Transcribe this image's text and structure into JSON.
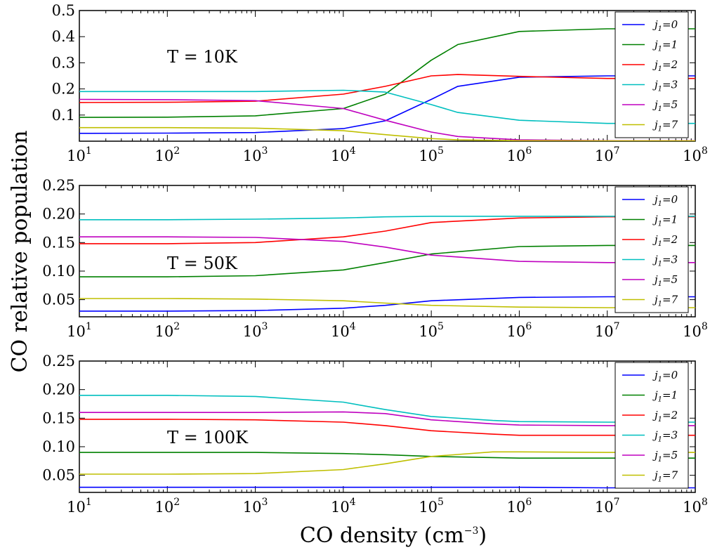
{
  "ylabel": "CO relative population",
  "xlabel": "CO density (cm",
  "xlabel_exp": "−3",
  "xlabel_close": ")",
  "chart_data": [
    {
      "type": "line",
      "annotation": "T = 10K",
      "x_scale": "log",
      "xlim": [
        10,
        100000000
      ],
      "ylim": [
        0,
        0.5
      ],
      "yticks": [
        "0.1",
        "0.2",
        "0.3",
        "0.4",
        "0.5"
      ],
      "ytick_values": [
        0.1,
        0.2,
        0.3,
        0.4,
        0.5
      ],
      "x": [
        10,
        100,
        1000,
        10000,
        30000,
        100000,
        200000,
        1000000,
        10000000,
        100000000
      ],
      "series": [
        {
          "name": "j1=0",
          "color": "#0000ff",
          "values": [
            0.03,
            0.031,
            0.033,
            0.048,
            0.078,
            0.16,
            0.21,
            0.245,
            0.25,
            0.25
          ]
        },
        {
          "name": "j1=1",
          "color": "#008000",
          "values": [
            0.091,
            0.092,
            0.097,
            0.125,
            0.18,
            0.31,
            0.37,
            0.42,
            0.43,
            0.43
          ]
        },
        {
          "name": "j1=2",
          "color": "#ff0000",
          "values": [
            0.148,
            0.149,
            0.153,
            0.18,
            0.21,
            0.25,
            0.255,
            0.248,
            0.24,
            0.24
          ]
        },
        {
          "name": "j1=3",
          "color": "#00bfbf",
          "values": [
            0.19,
            0.19,
            0.19,
            0.195,
            0.188,
            0.14,
            0.11,
            0.08,
            0.068,
            0.068
          ]
        },
        {
          "name": "j1=5",
          "color": "#bf00bf",
          "values": [
            0.16,
            0.159,
            0.155,
            0.125,
            0.08,
            0.035,
            0.018,
            0.005,
            0.002,
            0.002
          ]
        },
        {
          "name": "j1=7",
          "color": "#bfbf00",
          "values": [
            0.052,
            0.052,
            0.05,
            0.04,
            0.025,
            0.01,
            0.005,
            0.002,
            0.001,
            0.001
          ]
        }
      ]
    },
    {
      "type": "line",
      "annotation": "T = 50K",
      "x_scale": "log",
      "xlim": [
        10,
        100000000
      ],
      "ylim": [
        0.02,
        0.25
      ],
      "yticks": [
        "0.05",
        "0.10",
        "0.15",
        "0.20",
        "0.25"
      ],
      "ytick_values": [
        0.05,
        0.1,
        0.15,
        0.2,
        0.25
      ],
      "x": [
        10,
        100,
        1000,
        10000,
        30000,
        100000,
        1000000,
        10000000,
        100000000
      ],
      "series": [
        {
          "name": "j1=0",
          "color": "#0000ff",
          "values": [
            0.03,
            0.03,
            0.031,
            0.035,
            0.04,
            0.048,
            0.054,
            0.055,
            0.055
          ]
        },
        {
          "name": "j1=1",
          "color": "#008000",
          "values": [
            0.09,
            0.09,
            0.092,
            0.102,
            0.115,
            0.13,
            0.143,
            0.145,
            0.145
          ]
        },
        {
          "name": "j1=2",
          "color": "#ff0000",
          "values": [
            0.148,
            0.148,
            0.15,
            0.16,
            0.17,
            0.185,
            0.193,
            0.195,
            0.195
          ]
        },
        {
          "name": "j1=3",
          "color": "#00bfbf",
          "values": [
            0.19,
            0.19,
            0.191,
            0.193,
            0.195,
            0.196,
            0.196,
            0.196,
            0.196
          ]
        },
        {
          "name": "j1=5",
          "color": "#bf00bf",
          "values": [
            0.16,
            0.16,
            0.159,
            0.152,
            0.142,
            0.128,
            0.117,
            0.115,
            0.115
          ]
        },
        {
          "name": "j1=7",
          "color": "#bfbf00",
          "values": [
            0.052,
            0.052,
            0.051,
            0.048,
            0.044,
            0.04,
            0.037,
            0.036,
            0.036
          ]
        }
      ]
    },
    {
      "type": "line",
      "annotation": "T = 100K",
      "x_scale": "log",
      "xlim": [
        10,
        100000000
      ],
      "ylim": [
        0.02,
        0.25
      ],
      "yticks": [
        "0.05",
        "0.10",
        "0.15",
        "0.20",
        "0.25"
      ],
      "ytick_values": [
        0.05,
        0.1,
        0.15,
        0.2,
        0.25
      ],
      "x": [
        10,
        100,
        1000,
        10000,
        30000,
        100000,
        500000,
        1000000,
        10000000,
        100000000
      ],
      "series": [
        {
          "name": "j1=0",
          "color": "#0000ff",
          "values": [
            0.029,
            0.029,
            0.029,
            0.029,
            0.029,
            0.029,
            0.029,
            0.029,
            0.028,
            0.028
          ]
        },
        {
          "name": "j1=1",
          "color": "#008000",
          "values": [
            0.09,
            0.09,
            0.09,
            0.088,
            0.086,
            0.083,
            0.081,
            0.08,
            0.08,
            0.08
          ]
        },
        {
          "name": "j1=2",
          "color": "#ff0000",
          "values": [
            0.148,
            0.148,
            0.147,
            0.143,
            0.137,
            0.128,
            0.122,
            0.12,
            0.12,
            0.12
          ]
        },
        {
          "name": "j1=3",
          "color": "#00bfbf",
          "values": [
            0.19,
            0.19,
            0.188,
            0.178,
            0.165,
            0.153,
            0.146,
            0.144,
            0.143,
            0.143
          ]
        },
        {
          "name": "j1=5",
          "color": "#bf00bf",
          "values": [
            0.16,
            0.16,
            0.16,
            0.161,
            0.158,
            0.147,
            0.14,
            0.138,
            0.137,
            0.137
          ]
        },
        {
          "name": "j1=7",
          "color": "#bfbf00",
          "values": [
            0.052,
            0.052,
            0.053,
            0.06,
            0.07,
            0.083,
            0.091,
            0.091,
            0.09,
            0.09
          ]
        }
      ]
    }
  ]
}
